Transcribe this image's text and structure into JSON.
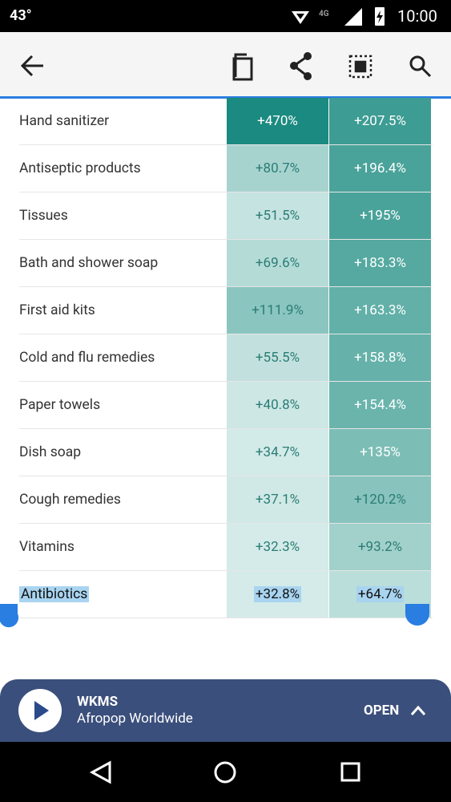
{
  "status_bar": {
    "temperature": "43°",
    "time": "10:00"
  },
  "table": {
    "rows": [
      {
        "name": "Hand sanitizer",
        "values": [
          "+470%",
          "+207.5%"
        ],
        "colors": [
          "#1b8a80",
          "#3d9c93"
        ]
      },
      {
        "name": "Antiseptic products",
        "values": [
          "+80.7%",
          "+196.4%"
        ],
        "colors": [
          "#a7d3cf",
          "#4aa39a"
        ]
      },
      {
        "name": "Tissues",
        "values": [
          "+51.5%",
          "+195%"
        ],
        "colors": [
          "#c5e3e0",
          "#4aa39a"
        ]
      },
      {
        "name": "Bath and shower soap",
        "values": [
          "+69.6%",
          "+183.3%"
        ],
        "colors": [
          "#b5dbd7",
          "#55a9a0"
        ]
      },
      {
        "name": "First aid kits",
        "values": [
          "+111.9%",
          "+163.3%"
        ],
        "colors": [
          "#8ac5bf",
          "#62b0a8"
        ]
      },
      {
        "name": "Cold and flu remedies",
        "values": [
          "+55.5%",
          "+158.8%"
        ],
        "colors": [
          "#c2e1de",
          "#66b2aa"
        ]
      },
      {
        "name": "Paper towels",
        "values": [
          "+40.8%",
          "+154.4%"
        ],
        "colors": [
          "#cde7e4",
          "#6ab4ac"
        ]
      },
      {
        "name": "Dish soap",
        "values": [
          "+34.7%",
          "+135%"
        ],
        "colors": [
          "#d2eae8",
          "#7cbdb6"
        ]
      },
      {
        "name": "Cough remedies",
        "values": [
          "+37.1%",
          "+120.2%"
        ],
        "colors": [
          "#d0e9e6",
          "#88c3bd"
        ]
      },
      {
        "name": "Vitamins",
        "values": [
          "+32.3%",
          "+93.2%"
        ],
        "colors": [
          "#d4ebe9",
          "#a2d0cb"
        ]
      },
      {
        "name": "Antibiotics",
        "values": [
          "+32.8%",
          "+64.7%"
        ],
        "colors": [
          "#d4ebe9",
          "#badeda"
        ]
      }
    ]
  },
  "player": {
    "station": "WKMS",
    "program": "Afropop Worldwide",
    "action": "OPEN"
  }
}
